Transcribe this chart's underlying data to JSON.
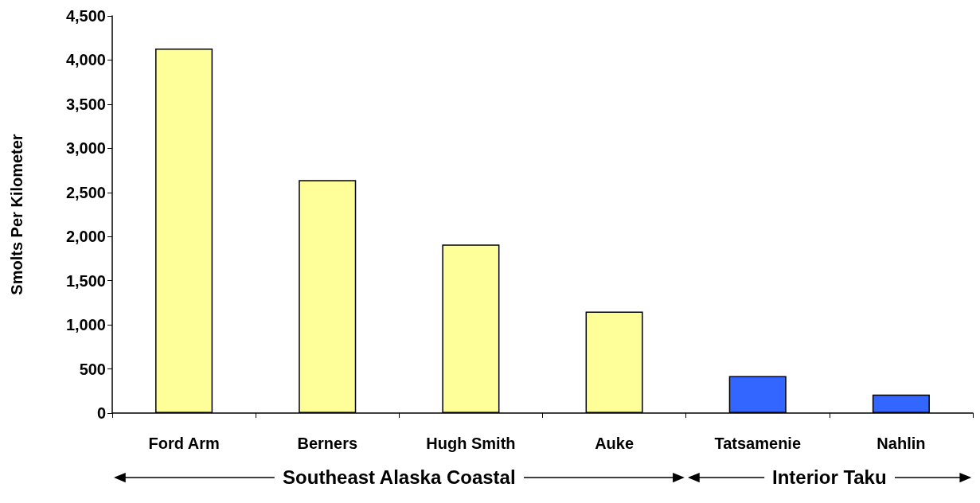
{
  "chart_data": {
    "type": "bar",
    "ylabel": "Smolts Per Kilometer",
    "categories": [
      "Ford Arm",
      "Berners",
      "Hugh Smith",
      "Auke",
      "Tatsamenie",
      "Nahlin"
    ],
    "values": [
      4130,
      2640,
      1910,
      1150,
      420,
      210
    ],
    "colors": [
      "#ffff99",
      "#ffff99",
      "#ffff99",
      "#ffff99",
      "#3366ff",
      "#3366ff"
    ],
    "ylim": [
      0,
      4500
    ],
    "yticks": [
      0,
      500,
      {
        "value": 1000,
        "label": "1,000"
      },
      {
        "value": 1500,
        "label": "1,500"
      },
      {
        "value": 2000,
        "label": "2,000"
      },
      {
        "value": 2500,
        "label": "2,500"
      },
      {
        "value": 3000,
        "label": "3,000"
      },
      {
        "value": 3500,
        "label": "3,500"
      },
      {
        "value": 4000,
        "label": "4,000"
      },
      {
        "value": 4500,
        "label": "4,500"
      }
    ],
    "grid": false,
    "annotations": [
      "Southeast Alaska Coastal",
      "Interior Taku"
    ]
  }
}
